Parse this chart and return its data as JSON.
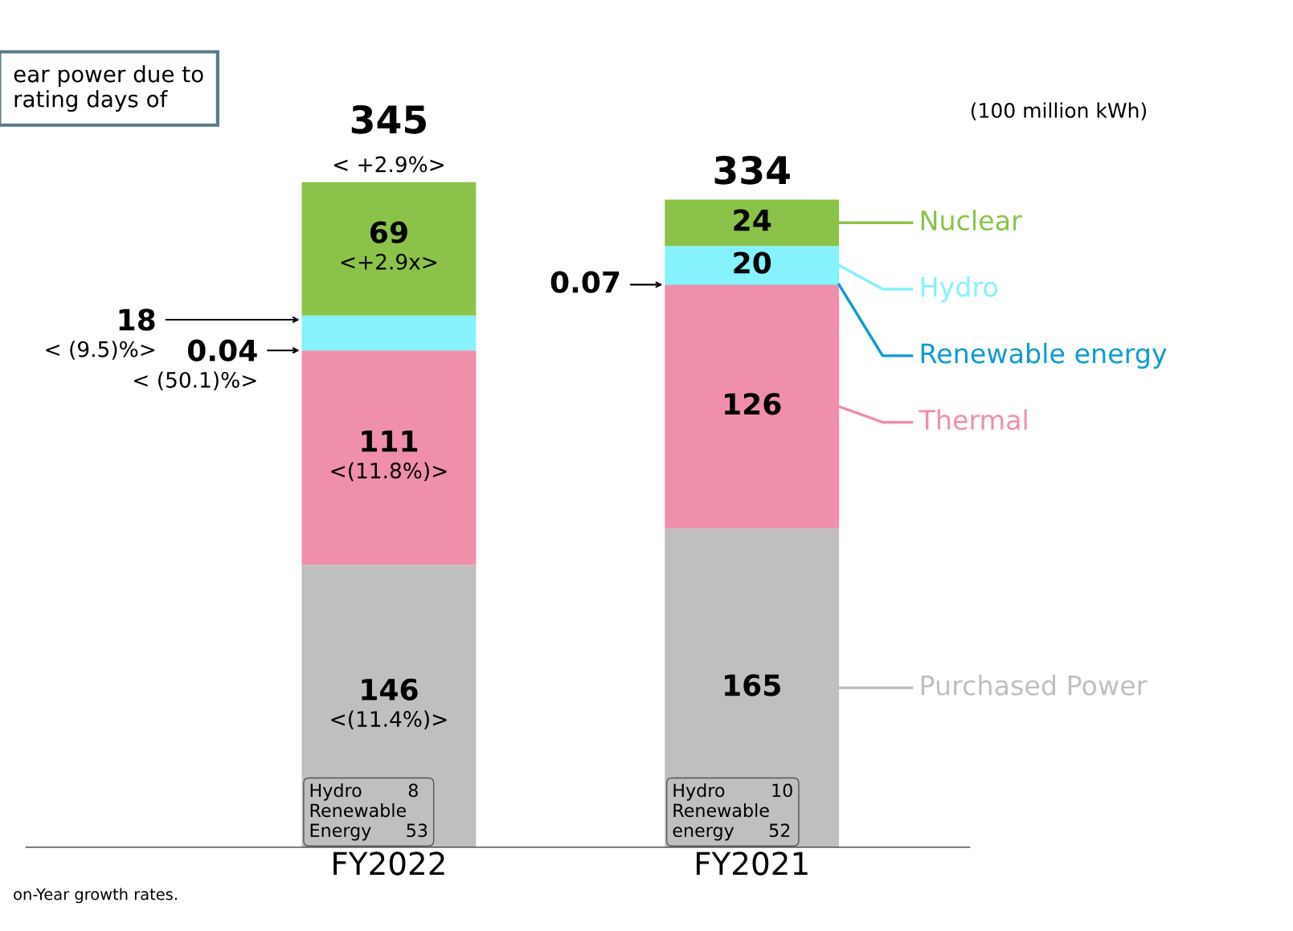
{
  "chart_data": {
    "type": "bar",
    "stacked": true,
    "categories": [
      "FY2022",
      "FY2021"
    ],
    "series": [
      {
        "name": "Purchased Power",
        "color": "#bfbfbf",
        "values": [
          146,
          165
        ],
        "value_labels": [
          "146\n<(11.4%)>",
          "165"
        ]
      },
      {
        "name": "Thermal",
        "color": "#ef8fab",
        "values": [
          111,
          126
        ],
        "value_labels": [
          "111\n<(11.8%)>",
          "126"
        ]
      },
      {
        "name": "Renewable energy",
        "color": "#0e9bd4",
        "values": [
          0.04,
          0.07
        ],
        "value_labels": [
          "0.04\n< (50.1)%>",
          "0.07"
        ]
      },
      {
        "name": "Hydro",
        "color": "#86f2fb",
        "values": [
          18,
          20
        ],
        "value_labels": [
          "18\n< (9.5)%>",
          "20"
        ]
      },
      {
        "name": "Nuclear",
        "color": "#8bc34a",
        "values": [
          69,
          24
        ],
        "value_labels": [
          "69\n<+2.9x>",
          "24"
        ]
      }
    ],
    "totals": [
      "345\n< +2.9%>",
      "334"
    ],
    "legend": "right",
    "tick_labels": "x",
    "ylabel": "(100 million kWh)",
    "annotations": [
      "ear power due to\nrating days of",
      "Hydro        8\nRenewable\nEnergy      53",
      "Hydro        10\nRenewable\nenergy      52",
      "on-Year growth rates."
    ]
  }
}
